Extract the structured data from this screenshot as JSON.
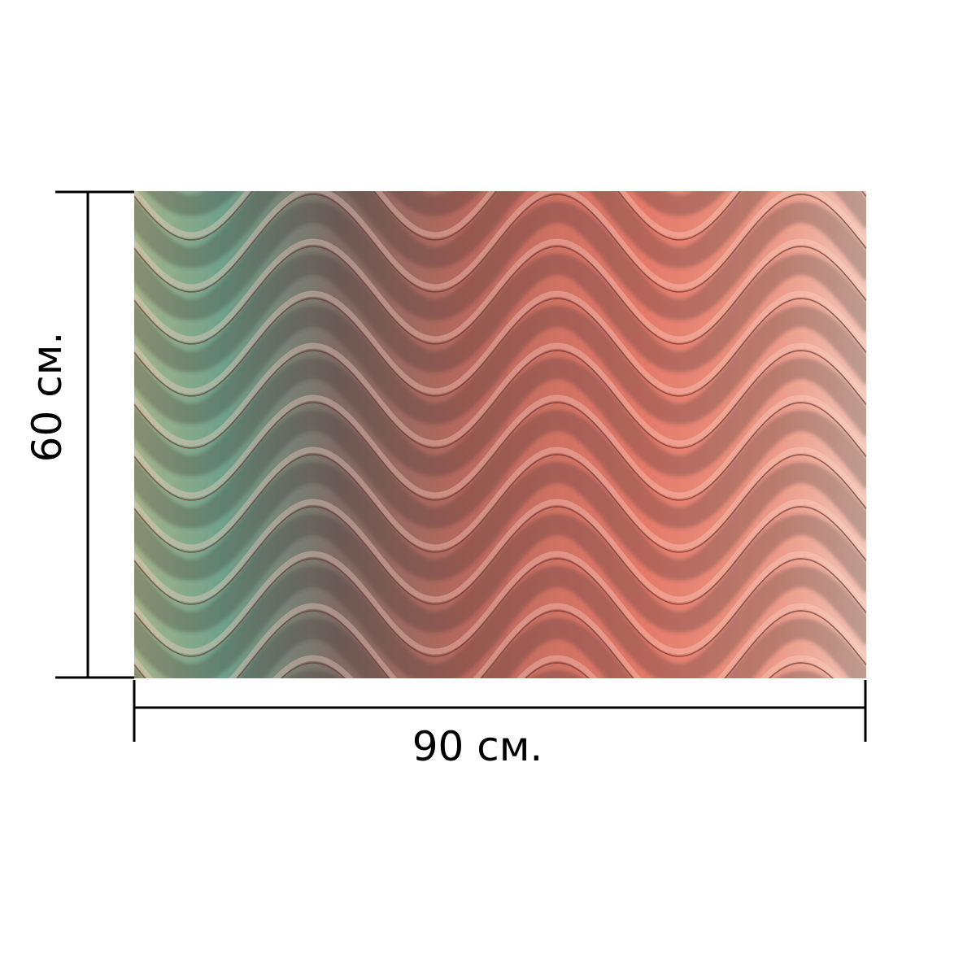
{
  "product_preview": {
    "pattern": "wavy-ribbed-texture",
    "colors": {
      "left": "#8fae8c",
      "teal": "#5f9a86",
      "middle": "#9a5a52",
      "right": "#e68272",
      "far_right": "#f1c3b1",
      "groove": "#6a3a36",
      "highlight": "#ffd8cc"
    }
  },
  "dimensions": {
    "width_label": "90 см.",
    "height_label": "60 см."
  },
  "colors": {
    "background": "#ffffff",
    "lines": "#000000"
  }
}
